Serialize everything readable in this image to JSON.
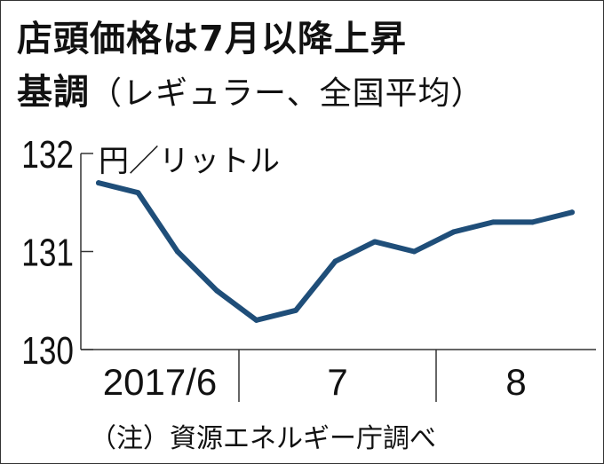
{
  "chart_data": {
    "type": "line",
    "title_line1": "店頭価格は7月以降上昇",
    "title_line2_main": "基調",
    "title_line2_sub": "（レギュラー、全国平均）",
    "unit": "円／リットル",
    "x_tick_labels": [
      "2017/6",
      "7",
      "8"
    ],
    "y_ticks": [
      130,
      131,
      132
    ],
    "ylim": [
      130,
      132
    ],
    "values": [
      131.7,
      131.6,
      131.0,
      130.6,
      130.3,
      130.4,
      130.9,
      131.1,
      131.0,
      131.2,
      131.3,
      131.3,
      131.4
    ],
    "line_color": "#1f4e79",
    "grid": false,
    "note": "（注）資源エネルギー庁調べ"
  }
}
